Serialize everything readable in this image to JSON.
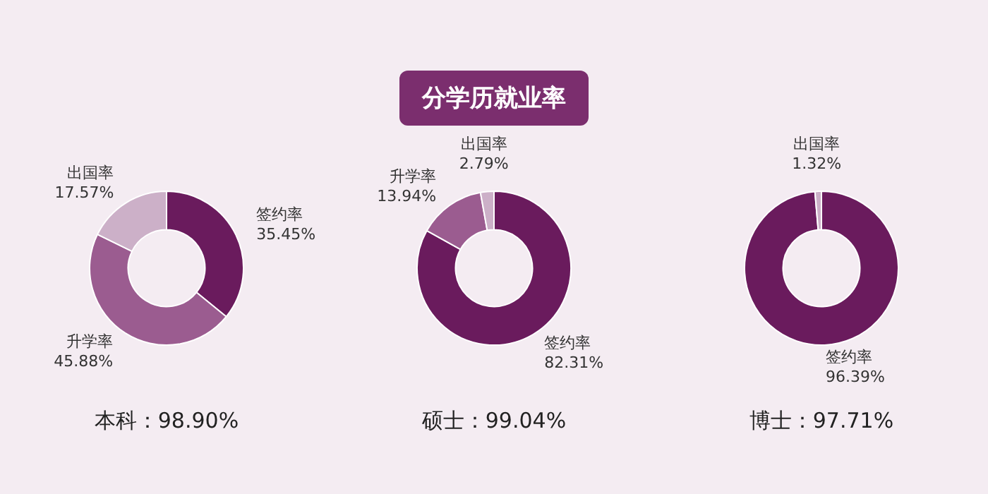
{
  "chart_data": [
    {
      "type": "other",
      "title": "分学历就业率"
    },
    {
      "type": "donut",
      "categories": [
        "签约率",
        "升学率",
        "出国率"
      ],
      "values": [
        35.45,
        45.88,
        17.57
      ],
      "colors": [
        "#6a1b5d",
        "#9b5c90",
        "#ccb0c8"
      ],
      "value_labels": [
        "35.45%",
        "45.88%",
        "17.57%"
      ],
      "annotations": [
        "本科：98.90%"
      ],
      "legend": false
    },
    {
      "type": "donut",
      "categories": [
        "签约率",
        "升学率",
        "出国率"
      ],
      "values": [
        82.31,
        13.94,
        2.79
      ],
      "colors": [
        "#6a1b5d",
        "#9b5c90",
        "#ccb0c8"
      ],
      "value_labels": [
        "82.31%",
        "13.94%",
        "2.79%"
      ],
      "annotations": [
        "硕士：99.04%"
      ],
      "legend": false
    },
    {
      "type": "donut",
      "categories": [
        "签约率",
        "出国率"
      ],
      "values": [
        96.39,
        1.32
      ],
      "colors": [
        "#6a1b5d",
        "#ccb0c8"
      ],
      "value_labels": [
        "96.39%",
        "1.32%"
      ],
      "annotations": [
        "博士：97.71%"
      ],
      "legend": false
    }
  ]
}
